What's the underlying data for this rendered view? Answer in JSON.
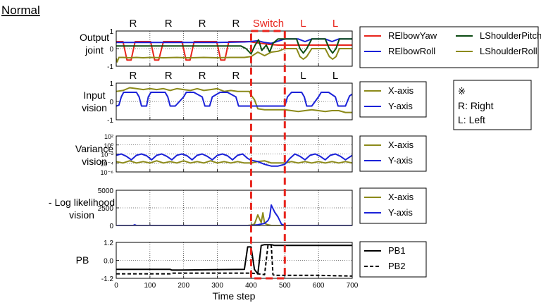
{
  "page_title": "Normal",
  "switch_label": "Switch",
  "x_axis_label": "Time step",
  "x_ticks": [
    "0",
    "100",
    "200",
    "300",
    "400",
    "500",
    "600",
    "700"
  ],
  "xlim": [
    0,
    700
  ],
  "switch_region": [
    400,
    500
  ],
  "note": {
    "symbol": "※",
    "line1": "R: Right",
    "line2": "L: Left"
  },
  "colors": {
    "red": "#e8241c",
    "blue": "#1b22d8",
    "olive": "#8c8a1a",
    "dark_green": "#0c4a12",
    "black": "#000000",
    "switch": "#e8241c"
  },
  "chart_data": [
    {
      "type": "line",
      "ylabel": "Output joint",
      "ylim": [
        -1,
        1
      ],
      "y_ticks": [
        "1",
        "0",
        "-1"
      ],
      "top_markers": [
        {
          "label": "R",
          "x": 50,
          "color": "black"
        },
        {
          "label": "R",
          "x": 155,
          "color": "black"
        },
        {
          "label": "R",
          "x": 255,
          "color": "black"
        },
        {
          "label": "R",
          "x": 355,
          "color": "black"
        },
        {
          "label": "L",
          "x": 555,
          "color": "red"
        },
        {
          "label": "L",
          "x": 650,
          "color": "red"
        }
      ],
      "legend_columns": 2,
      "series": [
        {
          "name": "RElbowYaw",
          "color": "red",
          "x": [
            0,
            8,
            20,
            32,
            44,
            56,
            74,
            90,
            102,
            114,
            126,
            140,
            160,
            180,
            195,
            207,
            219,
            231,
            243,
            265,
            285,
            298,
            310,
            322,
            334,
            346,
            362,
            380,
            395,
            410,
            430,
            450,
            480,
            500,
            540,
            580,
            620,
            660,
            700
          ],
          "y": [
            0.4,
            0.4,
            0.4,
            -0.65,
            -0.65,
            0.4,
            0.4,
            0.4,
            0.4,
            -0.65,
            -0.65,
            0.4,
            0.4,
            0.4,
            0.4,
            -0.65,
            -0.65,
            0.4,
            0.4,
            0.4,
            0.4,
            0.4,
            -0.65,
            -0.65,
            0.4,
            0.4,
            0.4,
            0.4,
            0.4,
            0.35,
            0.3,
            0.25,
            0.2,
            0.2,
            0.2,
            0.2,
            0.2,
            0.2,
            0.2
          ]
        },
        {
          "name": "RElbowRoll",
          "color": "blue",
          "x": [
            0,
            100,
            200,
            300,
            380,
            400,
            420,
            440,
            460,
            500,
            520,
            540,
            560,
            580,
            600,
            620,
            640,
            660,
            680,
            700
          ],
          "y": [
            0.35,
            0.35,
            0.35,
            0.35,
            0.38,
            0.4,
            0.45,
            0.35,
            0.3,
            0.55,
            0.55,
            0.55,
            0.4,
            0.55,
            0.55,
            0.55,
            0.4,
            0.55,
            0.55,
            0.55
          ]
        },
        {
          "name": "LShoulderPitch",
          "color": "dark_green",
          "x": [
            0,
            100,
            200,
            300,
            370,
            385,
            400,
            412,
            422,
            432,
            445,
            455,
            465,
            480,
            500,
            520,
            535,
            545,
            555,
            565,
            580,
            600,
            620,
            632,
            642,
            652,
            662,
            680,
            700
          ],
          "y": [
            0.15,
            0.15,
            0.15,
            0.15,
            0.15,
            0.0,
            -0.3,
            0.2,
            0.5,
            -0.1,
            0.2,
            -0.2,
            0.3,
            0.55,
            0.55,
            0.55,
            0.55,
            0.0,
            -0.25,
            0.0,
            0.55,
            0.55,
            0.55,
            0.0,
            -0.25,
            0.0,
            0.55,
            0.55,
            0.55
          ]
        },
        {
          "name": "LShoulderRoll",
          "color": "olive",
          "x": [
            0,
            3,
            8,
            20,
            40,
            60,
            80,
            100,
            140,
            180,
            220,
            260,
            300,
            340,
            380,
            400,
            420,
            440,
            460,
            480,
            500,
            520,
            535,
            545,
            555,
            565,
            580,
            600,
            620,
            632,
            642,
            652,
            662,
            680,
            700
          ],
          "y": [
            -0.55,
            -0.75,
            -0.5,
            -0.5,
            -0.52,
            -0.5,
            -0.52,
            -0.5,
            -0.52,
            -0.5,
            -0.52,
            -0.5,
            -0.52,
            -0.5,
            -0.5,
            -0.45,
            -0.2,
            -0.4,
            -0.2,
            -0.15,
            0.0,
            0.0,
            0.0,
            -0.45,
            -0.6,
            -0.45,
            0.0,
            0.0,
            0.0,
            -0.45,
            -0.6,
            -0.45,
            0.0,
            0.0,
            0.0
          ]
        }
      ]
    },
    {
      "type": "line",
      "ylabel": "Input vision",
      "ylim": [
        -1,
        1
      ],
      "y_ticks": [
        "1",
        "0",
        "-1"
      ],
      "top_markers": [
        {
          "label": "R",
          "x": 50,
          "color": "black"
        },
        {
          "label": "R",
          "x": 155,
          "color": "black"
        },
        {
          "label": "R",
          "x": 255,
          "color": "black"
        },
        {
          "label": "R",
          "x": 355,
          "color": "black"
        },
        {
          "label": "L",
          "x": 555,
          "color": "black"
        },
        {
          "label": "L",
          "x": 650,
          "color": "black"
        }
      ],
      "legend_columns": 1,
      "series": [
        {
          "name": "X-axis",
          "color": "olive",
          "x": [
            0,
            20,
            40,
            60,
            80,
            100,
            120,
            140,
            160,
            180,
            200,
            220,
            240,
            260,
            280,
            300,
            320,
            340,
            360,
            380,
            395,
            400,
            410,
            420,
            440,
            460,
            480,
            500,
            520,
            540,
            560,
            580,
            600,
            620,
            640,
            660,
            680,
            700
          ],
          "y": [
            0.55,
            0.6,
            0.75,
            0.7,
            0.65,
            0.7,
            0.65,
            0.7,
            0.6,
            0.7,
            0.65,
            0.6,
            0.7,
            0.6,
            0.65,
            0.7,
            0.55,
            0.6,
            0.55,
            0.55,
            0.55,
            0.35,
            0.1,
            -0.4,
            -0.45,
            -0.45,
            -0.45,
            -0.45,
            -0.5,
            -0.55,
            -0.5,
            -0.45,
            -0.5,
            -0.55,
            -0.5,
            -0.5,
            -0.6,
            -0.6
          ]
        },
        {
          "name": "Y-axis",
          "color": "blue",
          "x": [
            0,
            8,
            15,
            22,
            30,
            60,
            68,
            75,
            82,
            90,
            95,
            103,
            110,
            118,
            145,
            153,
            160,
            167,
            175,
            200,
            208,
            215,
            222,
            230,
            255,
            263,
            270,
            277,
            285,
            308,
            315,
            322,
            330,
            355,
            363,
            370,
            377,
            385,
            400,
            420,
            440,
            460,
            480,
            500,
            508,
            520,
            530,
            550,
            558,
            565,
            572,
            580,
            600,
            608,
            620,
            630,
            650,
            658,
            665,
            672,
            680,
            692,
            700
          ],
          "y": [
            -0.25,
            -0.2,
            0.25,
            0.5,
            0.5,
            0.5,
            0.25,
            -0.25,
            -0.25,
            -0.25,
            0.25,
            0.5,
            0.5,
            0.5,
            0.5,
            0.25,
            -0.25,
            -0.25,
            -0.25,
            0.25,
            0.5,
            0.5,
            0.5,
            0.5,
            0.25,
            -0.25,
            -0.25,
            -0.25,
            0.25,
            0.5,
            0.5,
            0.5,
            0.5,
            0.25,
            -0.25,
            -0.25,
            -0.25,
            -0.25,
            -0.25,
            -0.25,
            -0.25,
            -0.25,
            -0.25,
            -0.25,
            0.25,
            0.5,
            0.5,
            0.5,
            0.25,
            -0.25,
            -0.25,
            -0.25,
            0.25,
            0.5,
            0.5,
            0.5,
            0.25,
            -0.25,
            -0.25,
            -0.25,
            -0.25,
            0.3,
            0.4
          ]
        }
      ]
    },
    {
      "type": "line",
      "ylabel": "Variance vision",
      "yscale": "log",
      "ylim": [
        1e-06,
        100
      ],
      "y_ticks": [
        "10²",
        "10⁰",
        "10⁻²",
        "10⁻⁴",
        "10⁻⁶"
      ],
      "legend_columns": 1,
      "series": [
        {
          "name": "X-axis",
          "color": "olive",
          "x": [
            0,
            20,
            40,
            60,
            80,
            100,
            120,
            140,
            160,
            180,
            200,
            220,
            240,
            260,
            280,
            300,
            320,
            340,
            360,
            380,
            400,
            420,
            440,
            460,
            480,
            500,
            520,
            540,
            560,
            580,
            600,
            620,
            640,
            660,
            680,
            700
          ],
          "y": [
            0.0002,
            0.0001,
            0.0003,
            0.0001,
            0.0002,
            0.0001,
            0.0003,
            0.0001,
            0.0002,
            0.0001,
            0.0003,
            0.0001,
            0.0002,
            0.0001,
            0.0003,
            0.0001,
            0.0002,
            0.0001,
            0.0002,
            0.0001,
            0.0001,
            0.0002,
            0.0003,
            0.0001,
            0.0001,
            0.0001,
            0.0002,
            0.0001,
            0.0002,
            0.0001,
            0.0002,
            0.0001,
            0.0002,
            0.0001,
            0.0002,
            0.0001
          ]
        },
        {
          "name": "Y-axis",
          "color": "blue",
          "x": [
            0,
            15,
            30,
            45,
            60,
            75,
            90,
            105,
            120,
            135,
            150,
            165,
            180,
            195,
            210,
            225,
            240,
            255,
            270,
            285,
            300,
            315,
            330,
            345,
            360,
            375,
            390,
            400,
            420,
            440,
            460,
            480,
            500,
            515,
            530,
            545,
            560,
            575,
            590,
            605,
            620,
            635,
            650,
            665,
            680,
            700
          ],
          "y": [
            0.005,
            0.01,
            0.003,
            0.0005,
            0.005,
            0.01,
            0.004,
            0.0005,
            0.005,
            0.01,
            0.003,
            0.0005,
            0.005,
            0.01,
            0.004,
            0.0005,
            0.005,
            0.01,
            0.003,
            0.0005,
            0.005,
            0.01,
            0.004,
            0.0005,
            0.005,
            0.01,
            0.001,
            0.0004,
            0.0002,
            5e-05,
            2e-05,
            2e-05,
            5e-05,
            0.001,
            0.01,
            0.003,
            0.0005,
            0.005,
            0.01,
            0.003,
            0.0005,
            0.005,
            0.01,
            0.003,
            0.0005,
            0.005
          ]
        }
      ]
    },
    {
      "type": "line",
      "ylabel": "- Log likelihood vision",
      "ylim": [
        0,
        5000
      ],
      "y_ticks": [
        "5000",
        "2500",
        "0"
      ],
      "legend_columns": 1,
      "series": [
        {
          "name": "X-axis",
          "color": "olive",
          "x": [
            0,
            100,
            200,
            300,
            390,
            400,
            410,
            420,
            430,
            435,
            440,
            450,
            460,
            500,
            600,
            700
          ],
          "y": [
            0,
            0,
            0,
            0,
            0,
            50,
            200,
            1500,
            400,
            1800,
            300,
            100,
            0,
            0,
            0,
            0
          ]
        },
        {
          "name": "Y-axis",
          "color": "blue",
          "x": [
            0,
            50,
            55,
            60,
            100,
            200,
            300,
            400,
            420,
            440,
            450,
            455,
            460,
            470,
            480,
            490,
            500,
            600,
            700
          ],
          "y": [
            0,
            0,
            100,
            0,
            0,
            0,
            0,
            0,
            100,
            300,
            700,
            1200,
            2900,
            1900,
            1200,
            200,
            0,
            0,
            0
          ]
        }
      ]
    },
    {
      "type": "line",
      "ylabel": "PB",
      "ylim": [
        -1.2,
        1.2
      ],
      "y_ticks": [
        "1.2",
        "0.0",
        "-1.2"
      ],
      "legend_columns": 1,
      "series": [
        {
          "name": "PB1",
          "color": "black",
          "style": "solid",
          "x": [
            0,
            160,
            165,
            380,
            390,
            400,
            410,
            420,
            430,
            440,
            460,
            470,
            500,
            600,
            700
          ],
          "y": [
            -0.6,
            -0.6,
            -0.65,
            -0.6,
            0.9,
            0.9,
            -0.6,
            -0.9,
            1.0,
            1.05,
            1.05,
            1.0,
            1.0,
            1.0,
            1.0
          ]
        },
        {
          "name": "PB2",
          "color": "black",
          "style": "dashed",
          "x": [
            0,
            160,
            165,
            300,
            400,
            420,
            440,
            450,
            455,
            460,
            465,
            470,
            500,
            600,
            700
          ],
          "y": [
            -0.9,
            -0.9,
            -0.85,
            -0.85,
            -0.85,
            -0.9,
            -0.95,
            1.0,
            1.0,
            1.0,
            -0.95,
            -1.0,
            -1.0,
            -1.0,
            -1.05
          ]
        }
      ]
    }
  ]
}
